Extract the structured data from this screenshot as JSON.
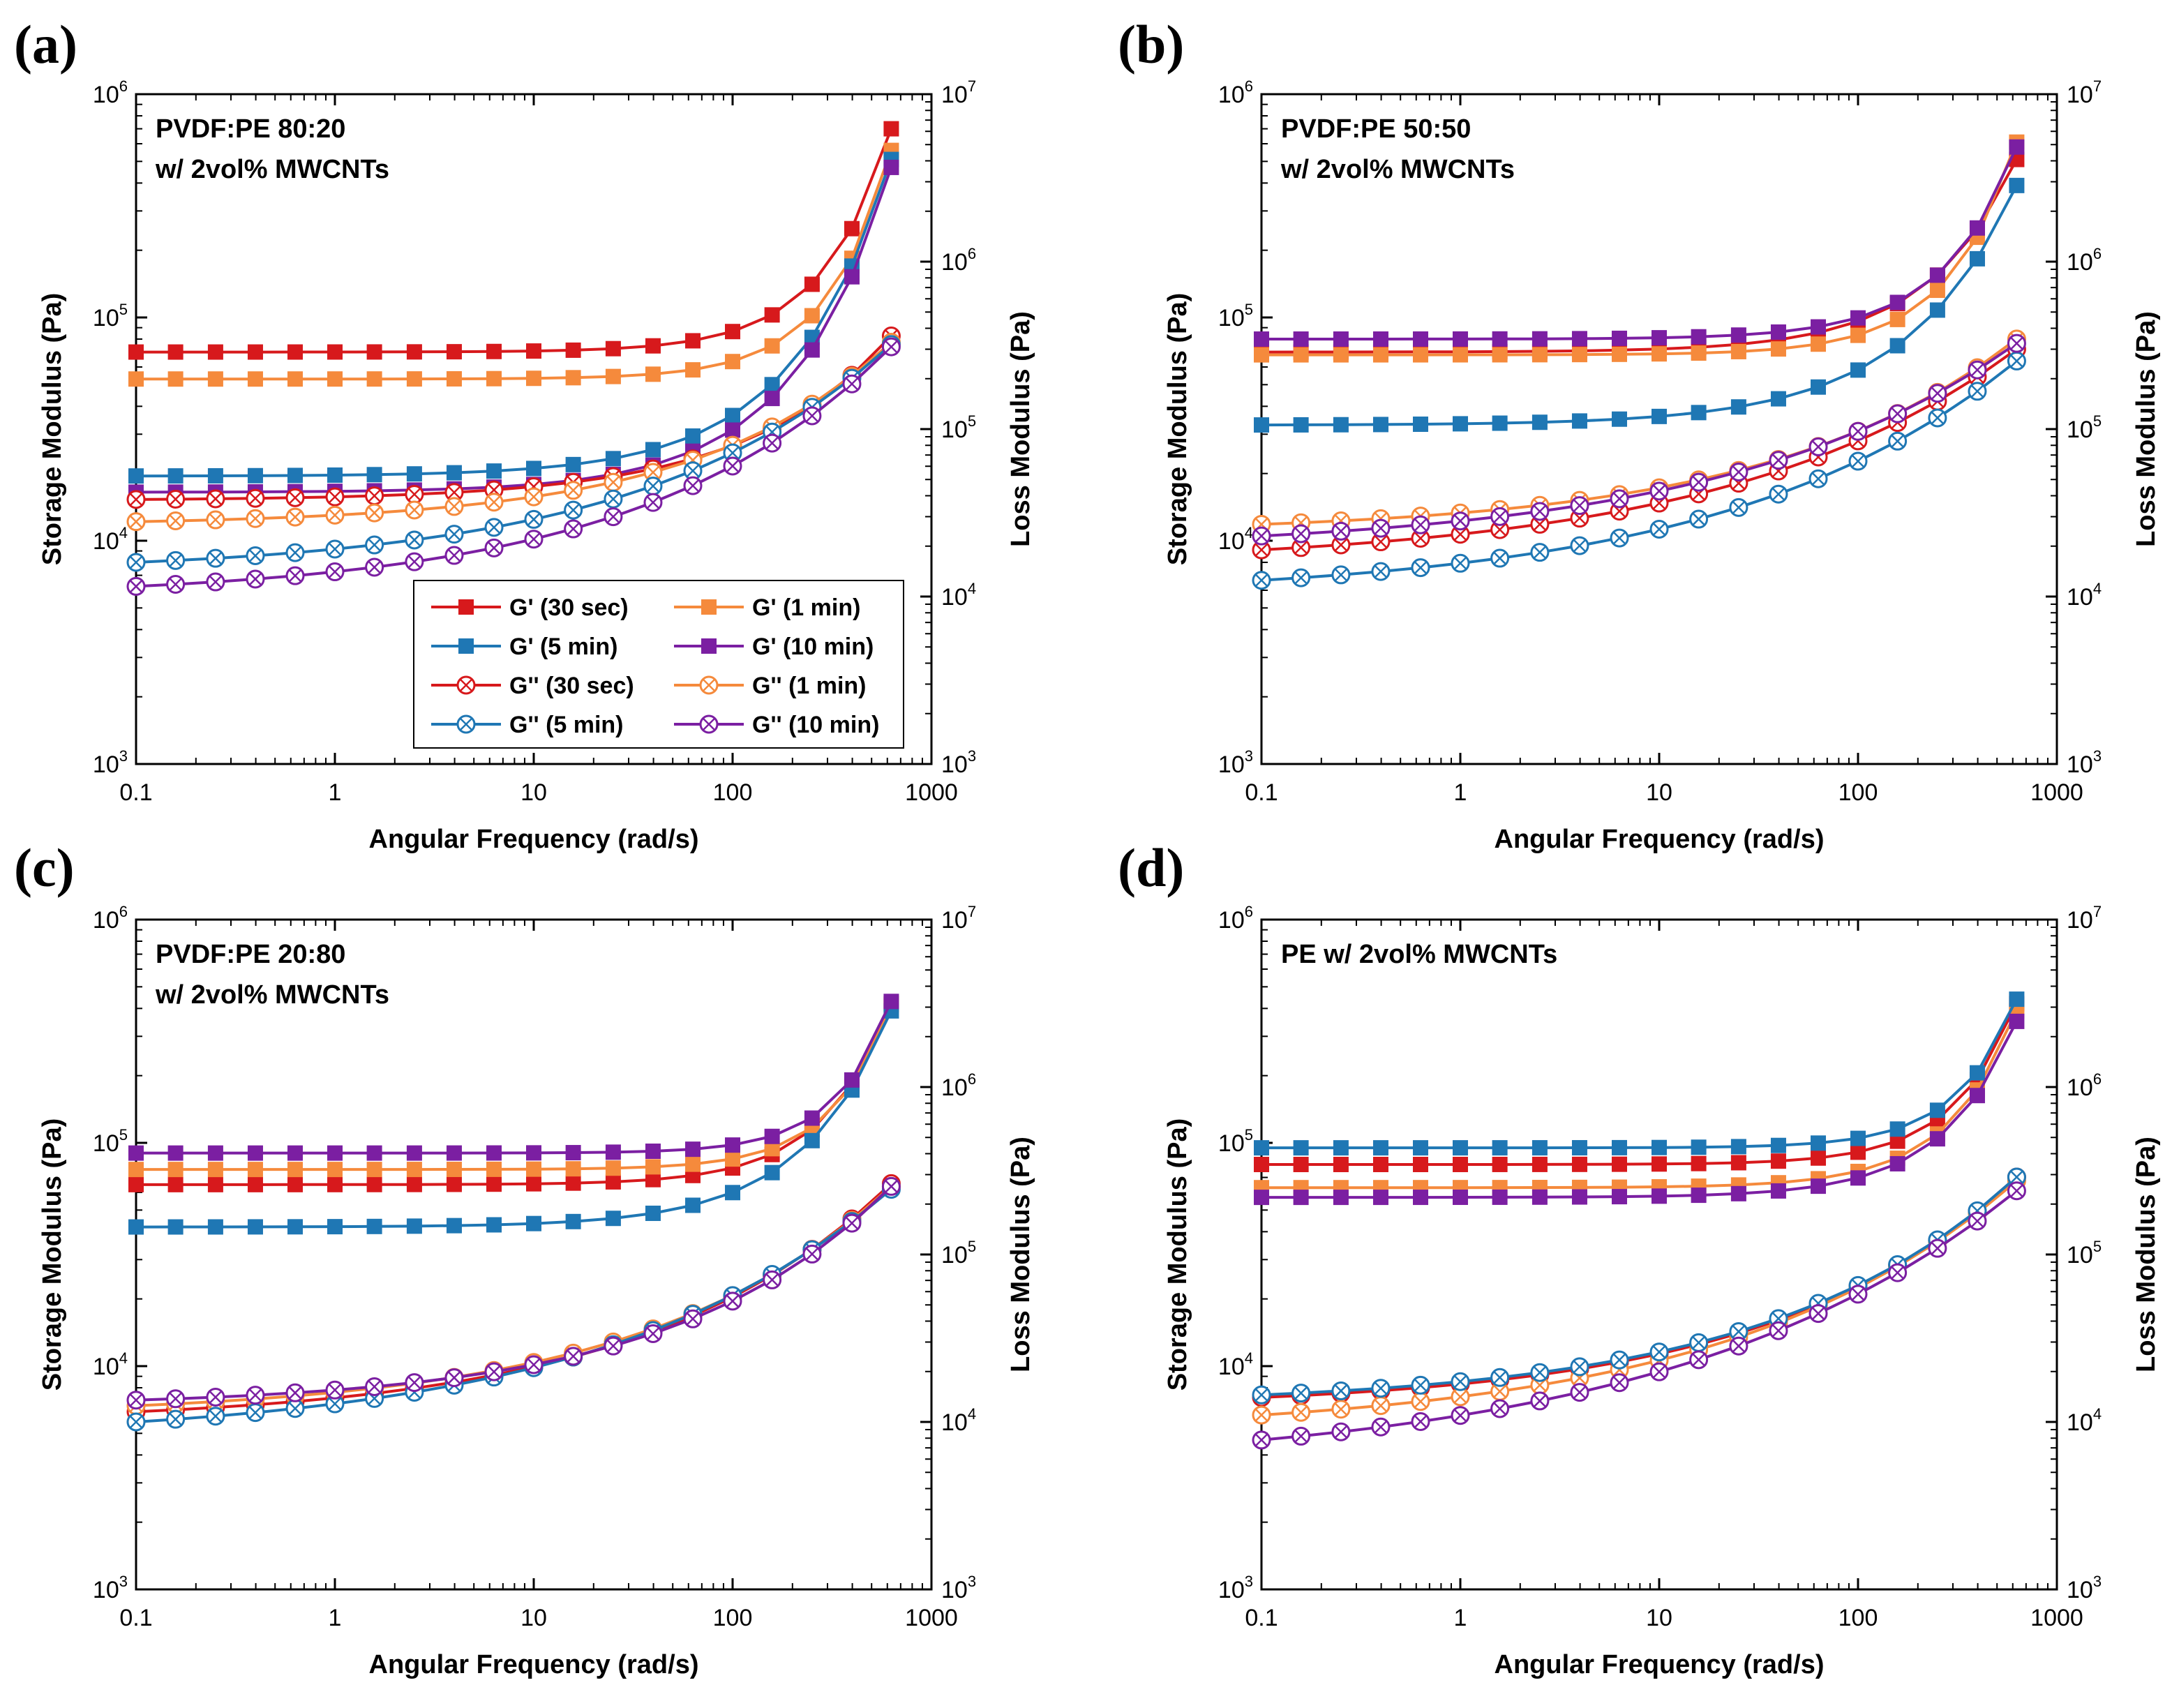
{
  "figure": {
    "background": "#ffffff"
  },
  "legend": {
    "entries": [
      {
        "label": "G' (30 sec)",
        "color": "#d7191c",
        "marker": "filled"
      },
      {
        "label": "G' (1 min)",
        "color": "#f58a3c",
        "marker": "filled"
      },
      {
        "label": "G' (5 min)",
        "color": "#1f77b4",
        "marker": "filled"
      },
      {
        "label": "G' (10 min)",
        "color": "#7b1fa2",
        "marker": "filled"
      },
      {
        "label": "G'' (30 sec)",
        "color": "#d7191c",
        "marker": "crossed"
      },
      {
        "label": "G'' (1 min)",
        "color": "#f58a3c",
        "marker": "crossed"
      },
      {
        "label": "G'' (5 min)",
        "color": "#1f77b4",
        "marker": "crossed"
      },
      {
        "label": "G'' (10 min)",
        "color": "#7b1fa2",
        "marker": "crossed"
      }
    ]
  },
  "chart_data": [
    {
      "type": "line",
      "panel": "(a)",
      "annotation": [
        "PVDF:PE 80:20",
        "w/ 2vol% MWCNTs"
      ],
      "xlabel": "Angular Frequency (rad/s)",
      "ylabel": "Storage Modulus (Pa)",
      "y2label": "Loss Modulus (Pa)",
      "xscale": "log",
      "xlim": [
        0.1,
        1000
      ],
      "ylim": [
        1000,
        1000000
      ],
      "y2lim": [
        1000,
        10000000
      ],
      "xticks": [
        "0.1",
        "1",
        "10",
        "100",
        "1000"
      ],
      "yticks": [
        "3",
        "4",
        "5",
        "6"
      ],
      "y2ticks": [
        "3",
        "4",
        "5",
        "6",
        "7"
      ],
      "legend": true,
      "x": [
        0.1,
        0.158,
        0.251,
        0.398,
        0.631,
        1,
        1.58,
        2.51,
        3.98,
        6.31,
        10,
        15.8,
        25.1,
        39.8,
        63.1,
        100,
        158,
        251,
        398,
        628
      ],
      "series": [
        {
          "name": "G' (30 sec)",
          "axis": "left",
          "start": 70000,
          "end": 700000,
          "c": 1.3
        },
        {
          "name": "G' (1 min)",
          "axis": "left",
          "start": 53000,
          "end": 560000,
          "c": 1.4
        },
        {
          "name": "G' (5 min)",
          "axis": "left",
          "start": 19500,
          "end": 510000,
          "c": 0.9
        },
        {
          "name": "G' (10 min)",
          "axis": "left",
          "start": 16500,
          "end": 470000,
          "c": 0.9
        },
        {
          "name": "G'' (30 sec)",
          "axis": "right",
          "start": 38000,
          "end": 360000,
          "c": 0.6
        },
        {
          "name": "G'' (1 min)",
          "axis": "right",
          "start": 28000,
          "end": 330000,
          "c": 0.45
        },
        {
          "name": "G'' (5 min)",
          "axis": "right",
          "start": 16000,
          "end": 320000,
          "c": 0.35
        },
        {
          "name": "G'' (10 min)",
          "axis": "right",
          "start": 11500,
          "end": 310000,
          "c": 0.35
        }
      ]
    },
    {
      "type": "line",
      "panel": "(b)",
      "annotation": [
        "PVDF:PE 50:50",
        "w/ 2vol% MWCNTs"
      ],
      "xlabel": "Angular Frequency (rad/s)",
      "ylabel": "Storage Modulus (Pa)",
      "y2label": "Loss Modulus (Pa)",
      "xscale": "log",
      "xlim": [
        0.1,
        1000
      ],
      "ylim": [
        1000,
        1000000
      ],
      "y2lim": [
        1000,
        10000000
      ],
      "xticks": [
        "0.1",
        "1",
        "10",
        "100",
        "1000"
      ],
      "yticks": [
        "3",
        "4",
        "5",
        "6"
      ],
      "y2ticks": [
        "3",
        "4",
        "5",
        "6",
        "7"
      ],
      "legend": false,
      "x": [
        0.1,
        0.158,
        0.251,
        0.398,
        0.631,
        1,
        1.58,
        2.51,
        3.98,
        6.31,
        10,
        15.8,
        25.1,
        39.8,
        63.1,
        100,
        158,
        251,
        398,
        628
      ],
      "series": [
        {
          "name": "G' (30 sec)",
          "axis": "left",
          "start": 70000,
          "end": 510000,
          "c": 1.0
        },
        {
          "name": "G' (1 min)",
          "axis": "left",
          "start": 68000,
          "end": 610000,
          "c": 1.3
        },
        {
          "name": "G' (5 min)",
          "axis": "left",
          "start": 33000,
          "end": 390000,
          "c": 0.8
        },
        {
          "name": "G' (10 min)",
          "axis": "left",
          "start": 80000,
          "end": 580000,
          "c": 1.2
        },
        {
          "name": "G'' (30 sec)",
          "axis": "right",
          "start": 19000,
          "end": 300000,
          "c": 0.3
        },
        {
          "name": "G'' (1 min)",
          "axis": "right",
          "start": 27000,
          "end": 345000,
          "c": 0.35
        },
        {
          "name": "G'' (5 min)",
          "axis": "right",
          "start": 12500,
          "end": 255000,
          "c": 0.3
        },
        {
          "name": "G'' (10 min)",
          "axis": "right",
          "start": 23000,
          "end": 325000,
          "c": 0.3
        }
      ]
    },
    {
      "type": "line",
      "panel": "(c)",
      "annotation": [
        "PVDF:PE 20:80",
        "w/ 2vol% MWCNTs"
      ],
      "xlabel": "Angular Frequency (rad/s)",
      "ylabel": "Storage Modulus (Pa)",
      "y2label": "Loss Modulus (Pa)",
      "xscale": "log",
      "xlim": [
        0.1,
        1000
      ],
      "ylim": [
        1000,
        1000000
      ],
      "y2lim": [
        1000,
        10000000
      ],
      "xticks": [
        "0.1",
        "1",
        "10",
        "100",
        "1000"
      ],
      "yticks": [
        "3",
        "4",
        "5",
        "6"
      ],
      "y2ticks": [
        "3",
        "4",
        "5",
        "6",
        "7"
      ],
      "legend": false,
      "x": [
        0.1,
        0.158,
        0.251,
        0.398,
        0.631,
        1,
        1.58,
        2.51,
        3.98,
        6.31,
        10,
        15.8,
        25.1,
        39.8,
        63.1,
        100,
        158,
        251,
        398,
        628
      ],
      "series": [
        {
          "name": "G' (30 sec)",
          "axis": "left",
          "start": 65000,
          "end": 420000,
          "c": 1.3
        },
        {
          "name": "G' (1 min)",
          "axis": "left",
          "start": 76000,
          "end": 415000,
          "c": 1.5
        },
        {
          "name": "G' (5 min)",
          "axis": "left",
          "start": 42000,
          "end": 390000,
          "c": 1.0
        },
        {
          "name": "G' (10 min)",
          "axis": "left",
          "start": 90000,
          "end": 430000,
          "c": 1.6
        },
        {
          "name": "G'' (30 sec)",
          "axis": "right",
          "start": 11500,
          "end": 265000,
          "c": 0.35
        },
        {
          "name": "G'' (1 min)",
          "axis": "right",
          "start": 12500,
          "end": 255000,
          "c": 0.35
        },
        {
          "name": "G'' (5 min)",
          "axis": "right",
          "start": 10000,
          "end": 245000,
          "c": 0.3
        },
        {
          "name": "G'' (10 min)",
          "axis": "right",
          "start": 13500,
          "end": 255000,
          "c": 0.4
        }
      ]
    },
    {
      "type": "line",
      "panel": "(d)",
      "annotation": [
        "PE w/ 2vol% MWCNTs"
      ],
      "xlabel": "Angular Frequency (rad/s)",
      "ylabel": "Storage Modulus (Pa)",
      "y2label": "Loss Modulus (Pa)",
      "xscale": "log",
      "xlim": [
        0.1,
        1000
      ],
      "ylim": [
        1000,
        1000000
      ],
      "y2lim": [
        1000,
        10000000
      ],
      "xticks": [
        "0.1",
        "1",
        "10",
        "100",
        "1000"
      ],
      "yticks": [
        "3",
        "4",
        "5",
        "6"
      ],
      "y2ticks": [
        "3",
        "4",
        "5",
        "6",
        "7"
      ],
      "legend": false,
      "x": [
        0.1,
        0.158,
        0.251,
        0.398,
        0.631,
        1,
        1.58,
        2.51,
        3.98,
        6.31,
        10,
        15.8,
        25.1,
        39.8,
        63.1,
        100,
        158,
        251,
        398,
        628
      ],
      "series": [
        {
          "name": "G' (30 sec)",
          "axis": "left",
          "start": 80000,
          "end": 420000,
          "c": 1.4
        },
        {
          "name": "G' (1 min)",
          "axis": "left",
          "start": 63000,
          "end": 390000,
          "c": 1.3
        },
        {
          "name": "G' (5 min)",
          "axis": "left",
          "start": 95000,
          "end": 440000,
          "c": 1.5
        },
        {
          "name": "G' (10 min)",
          "axis": "left",
          "start": 57000,
          "end": 350000,
          "c": 1.2
        },
        {
          "name": "G'' (30 sec)",
          "axis": "right",
          "start": 14000,
          "end": 290000,
          "c": 0.35
        },
        {
          "name": "G'' (1 min)",
          "axis": "right",
          "start": 11000,
          "end": 275000,
          "c": 0.3
        },
        {
          "name": "G'' (5 min)",
          "axis": "right",
          "start": 14500,
          "end": 290000,
          "c": 0.35
        },
        {
          "name": "G'' (10 min)",
          "axis": "right",
          "start": 7800,
          "end": 240000,
          "c": 0.25
        }
      ]
    }
  ]
}
